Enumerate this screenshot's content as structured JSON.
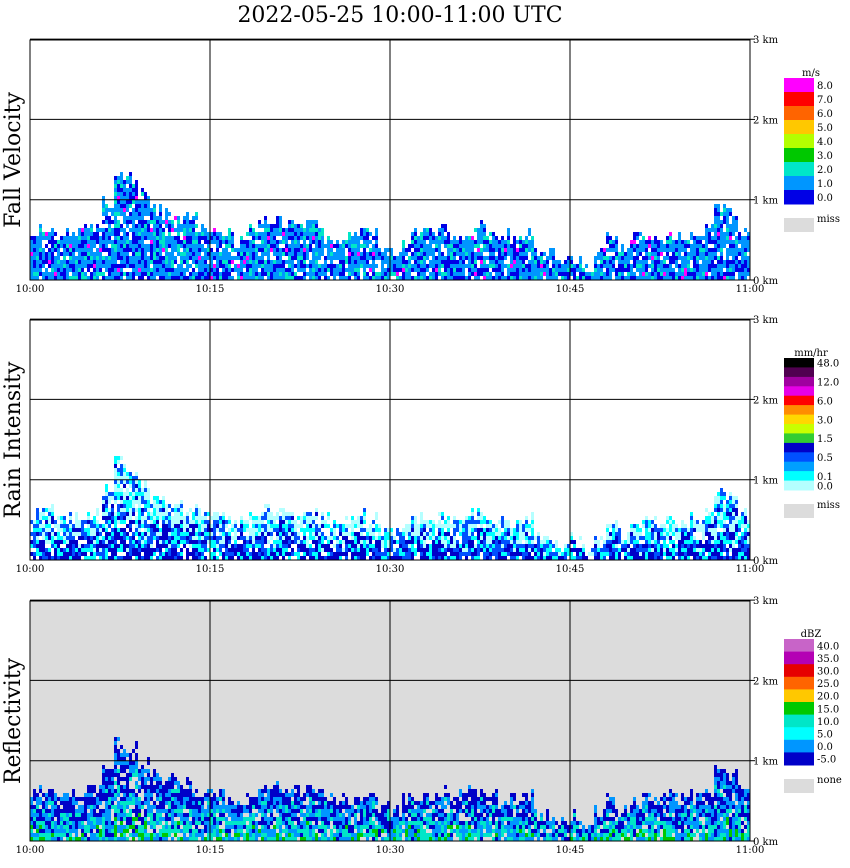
{
  "title": "2022-05-25   10:00-11:00 UTC",
  "x_ticks": [
    "10:00",
    "10:15",
    "10:30",
    "10:45",
    "11:00"
  ],
  "y_ticks": [
    "0 km",
    "1 km",
    "2 km",
    "3 km"
  ],
  "chart_data": [
    {
      "type": "heatmap",
      "ylabel": "Fall Velocity",
      "xlim": [
        "10:00",
        "11:00"
      ],
      "ylim": [
        0,
        3
      ],
      "unit": "m/s",
      "background": "#ffffff",
      "legend": [
        {
          "label": "8.0",
          "color": "#ff00ff"
        },
        {
          "label": "7.0",
          "color": "#ff0000"
        },
        {
          "label": "6.0",
          "color": "#ff6400"
        },
        {
          "label": "5.0",
          "color": "#ffc800"
        },
        {
          "label": "4.0",
          "color": "#b4ff00"
        },
        {
          "label": "3.0",
          "color": "#00c800"
        },
        {
          "label": "2.0",
          "color": "#00e6c8"
        },
        {
          "label": "1.0",
          "color": "#0096ff"
        },
        {
          "label": "0.0",
          "color": "#0000e6"
        }
      ],
      "miss_label": "miss",
      "miss_color": "#dcdcdc",
      "profile_tops_km": [
        0.6,
        0.6,
        0.55,
        0.55,
        0.65,
        0.6,
        0.95,
        1.25,
        1.25,
        1.05,
        0.85,
        0.8,
        0.75,
        0.75,
        0.6,
        0.6,
        0.55,
        0.5,
        0.65,
        0.7,
        0.7,
        0.65,
        0.65,
        0.7,
        0.55,
        0.5,
        0.5,
        0.6,
        0.55,
        0.4,
        0.35,
        0.5,
        0.55,
        0.55,
        0.65,
        0.55,
        0.6,
        0.65,
        0.6,
        0.55,
        0.5,
        0.55,
        0.3,
        0.3,
        0.2,
        0.3,
        0.15,
        0.35,
        0.5,
        0.35,
        0.5,
        0.5,
        0.5,
        0.55,
        0.5,
        0.6,
        0.6,
        0.85,
        0.8,
        0.6
      ]
    },
    {
      "type": "heatmap",
      "ylabel": "Rain Intensity",
      "xlim": [
        "10:00",
        "11:00"
      ],
      "ylim": [
        0,
        3
      ],
      "unit": "mm/hr",
      "background": "#ffffff",
      "legend": [
        {
          "label": "48.0",
          "color": "#000000"
        },
        {
          "label": "",
          "color": "#500050"
        },
        {
          "label": "12.0",
          "color": "#a000a0"
        },
        {
          "label": "",
          "color": "#e600e6"
        },
        {
          "label": "6.0",
          "color": "#ff0000"
        },
        {
          "label": "",
          "color": "#ff8c00"
        },
        {
          "label": "3.0",
          "color": "#ffd700"
        },
        {
          "label": "",
          "color": "#c8ff00"
        },
        {
          "label": "1.5",
          "color": "#32cd32"
        },
        {
          "label": "",
          "color": "#0000c8"
        },
        {
          "label": "0.5",
          "color": "#0050ff"
        },
        {
          "label": "",
          "color": "#00a0ff"
        },
        {
          "label": "0.1",
          "color": "#00ffff"
        },
        {
          "label": "0.0",
          "color": "#b4ffff"
        }
      ],
      "miss_label": "miss",
      "miss_color": "#dcdcdc",
      "profile_tops_km": [
        0.55,
        0.6,
        0.5,
        0.5,
        0.55,
        0.55,
        0.85,
        1.2,
        1.1,
        0.9,
        0.75,
        0.7,
        0.65,
        0.65,
        0.55,
        0.55,
        0.5,
        0.45,
        0.55,
        0.6,
        0.6,
        0.6,
        0.55,
        0.6,
        0.5,
        0.45,
        0.45,
        0.55,
        0.5,
        0.35,
        0.3,
        0.45,
        0.5,
        0.5,
        0.55,
        0.5,
        0.55,
        0.55,
        0.5,
        0.45,
        0.45,
        0.5,
        0.25,
        0.25,
        0.15,
        0.25,
        0.1,
        0.3,
        0.45,
        0.3,
        0.45,
        0.45,
        0.45,
        0.5,
        0.45,
        0.55,
        0.55,
        0.8,
        0.75,
        0.55
      ]
    },
    {
      "type": "heatmap",
      "ylabel": "Reflectivity",
      "xlim": [
        "10:00",
        "11:00"
      ],
      "ylim": [
        0,
        3
      ],
      "unit": "dBZ",
      "background": "#dcdcdc",
      "legend": [
        {
          "label": "40.0",
          "color": "#c864c8"
        },
        {
          "label": "35.0",
          "color": "#b400b4"
        },
        {
          "label": "30.0",
          "color": "#e60000"
        },
        {
          "label": "25.0",
          "color": "#ff6400"
        },
        {
          "label": "20.0",
          "color": "#ffc800"
        },
        {
          "label": "15.0",
          "color": "#00c800"
        },
        {
          "label": "10.0",
          "color": "#00e6c8"
        },
        {
          "label": "5.0",
          "color": "#00ffff"
        },
        {
          "label": "0.0",
          "color": "#0096ff"
        },
        {
          "label": "-5.0",
          "color": "#0000c8"
        }
      ],
      "miss_label": "none",
      "miss_color": "#dcdcdc",
      "profile_tops_km": [
        0.6,
        0.6,
        0.55,
        0.55,
        0.6,
        0.6,
        0.95,
        1.2,
        1.15,
        0.95,
        0.8,
        0.75,
        0.7,
        0.7,
        0.6,
        0.6,
        0.55,
        0.5,
        0.6,
        0.65,
        0.65,
        0.6,
        0.6,
        0.65,
        0.55,
        0.5,
        0.5,
        0.55,
        0.55,
        0.4,
        0.35,
        0.5,
        0.55,
        0.55,
        0.6,
        0.55,
        0.6,
        0.6,
        0.55,
        0.5,
        0.5,
        0.55,
        0.3,
        0.3,
        0.2,
        0.3,
        0.15,
        0.35,
        0.5,
        0.35,
        0.5,
        0.5,
        0.5,
        0.55,
        0.5,
        0.6,
        0.6,
        0.85,
        0.8,
        0.6
      ]
    }
  ]
}
